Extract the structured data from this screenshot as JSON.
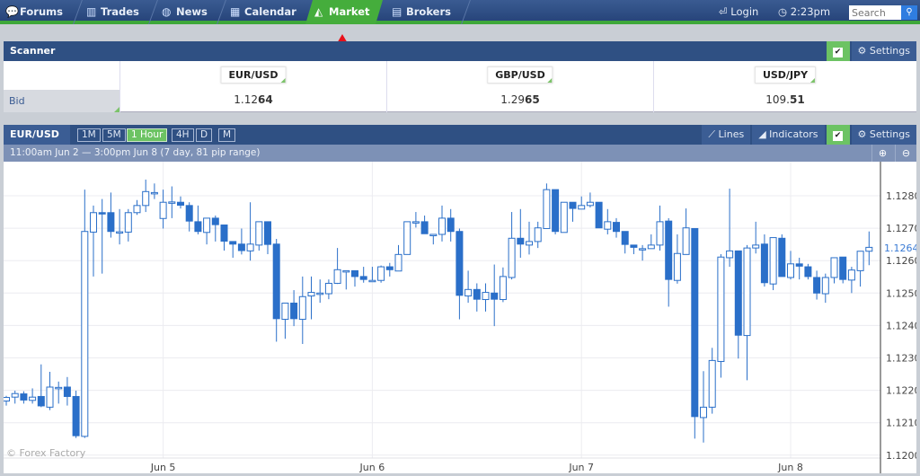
{
  "nav": {
    "tabs": [
      {
        "label": "Forums",
        "icon": "speech-bubbles-icon"
      },
      {
        "label": "Trades",
        "icon": "bar-columns-icon"
      },
      {
        "label": "News",
        "icon": "globe-icon"
      },
      {
        "label": "Calendar",
        "icon": "calendar-icon"
      },
      {
        "label": "Market",
        "icon": "chart-mountain-icon",
        "active": true
      },
      {
        "label": "Brokers",
        "icon": "brokers-icon"
      }
    ],
    "login": "Login",
    "time": "2:23pm",
    "search_placeholder": "Search"
  },
  "colors": {
    "nav": "#2b4a7d",
    "accent_green": "#45ad3c",
    "candle": "#2a6fc9",
    "arrow": "#e8101a"
  },
  "scanner": {
    "title": "Scanner",
    "settings": "Settings",
    "row_label": "Bid",
    "pairs": [
      {
        "name": "EUR/USD",
        "main": "1.12",
        "pip": "64"
      },
      {
        "name": "GBP/USD",
        "main": "1.29",
        "pip": "65"
      },
      {
        "name": "USD/JPY",
        "main": "109.",
        "pip": "51"
      }
    ]
  },
  "chart_panel": {
    "symbol": "EUR/USD",
    "timeframes": [
      "1M",
      "5M",
      "1 Hour",
      "4H",
      "D",
      "M"
    ],
    "active_timeframe": "1 Hour",
    "lines": "Lines",
    "indicators": "Indicators",
    "settings": "Settings",
    "range_text": "11:00am Jun 2 — 3:00pm Jun 8 (7 day, 81 pip range)",
    "watermark": "© Forex Factory"
  },
  "chart_data": {
    "type": "candlestick",
    "interval": "1 hour",
    "ylim": [
      1.1195,
      1.129
    ],
    "yticks": [
      "1.1200",
      "1.1210",
      "1.1220",
      "1.1230",
      "1.1240",
      "1.1250",
      "1.1260",
      "1.1270",
      "1.1280"
    ],
    "xticks": [
      {
        "label": "Jun  5",
        "index": 18
      },
      {
        "label": "Jun  6",
        "index": 42
      },
      {
        "label": "Jun  7",
        "index": 66
      },
      {
        "label": "Jun  8",
        "index": 90
      }
    ],
    "current_price": "1.1264",
    "grid": true,
    "ohlc": [
      [
        1.12167,
        1.12183,
        1.12153,
        1.12178
      ],
      [
        1.12179,
        1.12199,
        1.12159,
        1.1219
      ],
      [
        1.12189,
        1.12197,
        1.12159,
        1.1217
      ],
      [
        1.12169,
        1.12206,
        1.12159,
        1.12179
      ],
      [
        1.12181,
        1.1228,
        1.12148,
        1.12152
      ],
      [
        1.12148,
        1.12257,
        1.12139,
        1.1221
      ],
      [
        1.12208,
        1.12227,
        1.12159,
        1.12209
      ],
      [
        1.1221,
        1.12241,
        1.12153,
        1.12181
      ],
      [
        1.12181,
        1.12199,
        1.12053,
        1.1206
      ],
      [
        1.12058,
        1.12819,
        1.12053,
        1.1269
      ],
      [
        1.12688,
        1.1277,
        1.12551,
        1.12748
      ],
      [
        1.12748,
        1.1279,
        1.1256,
        1.12747
      ],
      [
        1.12748,
        1.1281,
        1.12671,
        1.1269
      ],
      [
        1.12688,
        1.12759,
        1.1265,
        1.12689
      ],
      [
        1.12688,
        1.12759,
        1.12659,
        1.12748
      ],
      [
        1.12748,
        1.12787,
        1.12741,
        1.1277
      ],
      [
        1.1277,
        1.1285,
        1.1275,
        1.12813
      ],
      [
        1.1281,
        1.12838,
        1.1279,
        1.1281
      ],
      [
        1.1273,
        1.12819,
        1.12699,
        1.1278
      ],
      [
        1.1278,
        1.12829,
        1.12731,
        1.12781
      ],
      [
        1.1278,
        1.12798,
        1.12761,
        1.12771
      ],
      [
        1.1277,
        1.1278,
        1.1269,
        1.12722
      ],
      [
        1.1272,
        1.1277,
        1.12681,
        1.1269
      ],
      [
        1.12687,
        1.12731,
        1.1265,
        1.12731
      ],
      [
        1.12731,
        1.12739,
        1.12659,
        1.12711
      ],
      [
        1.1271,
        1.1271,
        1.12631,
        1.1266
      ],
      [
        1.12659,
        1.12659,
        1.12609,
        1.12651
      ],
      [
        1.12651,
        1.12699,
        1.12619,
        1.12631
      ],
      [
        1.1263,
        1.1278,
        1.126,
        1.12651
      ],
      [
        1.12648,
        1.1272,
        1.12631,
        1.1272
      ],
      [
        1.1272,
        1.1272,
        1.1262,
        1.1265
      ],
      [
        1.12651,
        1.12667,
        1.1235,
        1.12421
      ],
      [
        1.12419,
        1.12469,
        1.12359,
        1.12469
      ],
      [
        1.12469,
        1.12509,
        1.12398,
        1.12421
      ],
      [
        1.12419,
        1.12551,
        1.12343,
        1.12489
      ],
      [
        1.12491,
        1.12551,
        1.12419,
        1.12502
      ],
      [
        1.125,
        1.12542,
        1.1247,
        1.125
      ],
      [
        1.12498,
        1.12542,
        1.12481,
        1.1253
      ],
      [
        1.1253,
        1.12639,
        1.12528,
        1.12572
      ],
      [
        1.12569,
        1.12569,
        1.12511,
        1.12569
      ],
      [
        1.12569,
        1.12569,
        1.1252,
        1.12551
      ],
      [
        1.12551,
        1.12581,
        1.12532,
        1.12542
      ],
      [
        1.12539,
        1.12581,
        1.12537,
        1.12539
      ],
      [
        1.12539,
        1.12585,
        1.12532,
        1.12581
      ],
      [
        1.12581,
        1.12593,
        1.12551,
        1.12572
      ],
      [
        1.12568,
        1.12648,
        1.12568,
        1.12619
      ],
      [
        1.12619,
        1.1272,
        1.12619,
        1.1272
      ],
      [
        1.1272,
        1.1275,
        1.12702,
        1.1272
      ],
      [
        1.1272,
        1.12739,
        1.12683,
        1.12683
      ],
      [
        1.12681,
        1.12681,
        1.1265,
        1.12681
      ],
      [
        1.12681,
        1.1277,
        1.12659,
        1.12731
      ],
      [
        1.12731,
        1.12759,
        1.12659,
        1.1269
      ],
      [
        1.1269,
        1.12699,
        1.12419,
        1.12493
      ],
      [
        1.12491,
        1.12569,
        1.1247,
        1.12511
      ],
      [
        1.12511,
        1.1253,
        1.12443,
        1.12481
      ],
      [
        1.1248,
        1.1253,
        1.12443,
        1.12502
      ],
      [
        1.125,
        1.12588,
        1.12398,
        1.12481
      ],
      [
        1.1248,
        1.12579,
        1.12472,
        1.12551
      ],
      [
        1.12548,
        1.1275,
        1.12542,
        1.12669
      ],
      [
        1.12669,
        1.12759,
        1.12609,
        1.12651
      ],
      [
        1.12648,
        1.1272,
        1.12619,
        1.12659
      ],
      [
        1.12659,
        1.1272,
        1.12639,
        1.12701
      ],
      [
        1.12699,
        1.12838,
        1.12699,
        1.12819
      ],
      [
        1.12819,
        1.12819,
        1.12681,
        1.1269
      ],
      [
        1.12687,
        1.1278,
        1.12687,
        1.1278
      ],
      [
        1.1278,
        1.1278,
        1.1272,
        1.12761
      ],
      [
        1.12759,
        1.12798,
        1.12759,
        1.1277
      ],
      [
        1.1277,
        1.1281,
        1.12764,
        1.1278
      ],
      [
        1.1278,
        1.1278,
        1.12701,
        1.12701
      ],
      [
        1.12697,
        1.12759,
        1.12681,
        1.1272
      ],
      [
        1.12718,
        1.12731,
        1.12671,
        1.1269
      ],
      [
        1.1269,
        1.1269,
        1.12622,
        1.1265
      ],
      [
        1.12648,
        1.12648,
        1.1262,
        1.12641
      ],
      [
        1.12637,
        1.12648,
        1.126,
        1.12637
      ],
      [
        1.12637,
        1.12681,
        1.12637,
        1.12648
      ],
      [
        1.12648,
        1.1277,
        1.12631,
        1.1272
      ],
      [
        1.12722,
        1.12731,
        1.12458,
        1.12542
      ],
      [
        1.12539,
        1.12681,
        1.12529,
        1.12622
      ],
      [
        1.12619,
        1.12761,
        1.12619,
        1.12701
      ],
      [
        1.12699,
        1.12699,
        1.12051,
        1.12119
      ],
      [
        1.12116,
        1.12259,
        1.12039,
        1.12148
      ],
      [
        1.12148,
        1.12331,
        1.12128,
        1.12292
      ],
      [
        1.12289,
        1.1262,
        1.12239,
        1.12611
      ],
      [
        1.12609,
        1.12822,
        1.12581,
        1.1263
      ],
      [
        1.1263,
        1.1263,
        1.12298,
        1.1237
      ],
      [
        1.12369,
        1.12648,
        1.12231,
        1.12639
      ],
      [
        1.12639,
        1.1272,
        1.12622,
        1.12648
      ],
      [
        1.12651,
        1.12681,
        1.1252,
        1.12532
      ],
      [
        1.12528,
        1.12671,
        1.12509,
        1.12671
      ],
      [
        1.12669,
        1.12681,
        1.12551,
        1.12551
      ],
      [
        1.12548,
        1.1263,
        1.12542,
        1.1259
      ],
      [
        1.1259,
        1.12609,
        1.12542,
        1.12583
      ],
      [
        1.12581,
        1.1259,
        1.12542,
        1.12551
      ],
      [
        1.12548,
        1.12569,
        1.1248,
        1.125
      ],
      [
        1.12498,
        1.1256,
        1.1247,
        1.12548
      ],
      [
        1.12548,
        1.12609,
        1.1253,
        1.12609
      ],
      [
        1.12611,
        1.12611,
        1.1253,
        1.12542
      ],
      [
        1.1254,
        1.12581,
        1.125,
        1.12571
      ],
      [
        1.12569,
        1.12629,
        1.1252,
        1.12629
      ],
      [
        1.12629,
        1.1269,
        1.12586,
        1.12641
      ]
    ]
  }
}
